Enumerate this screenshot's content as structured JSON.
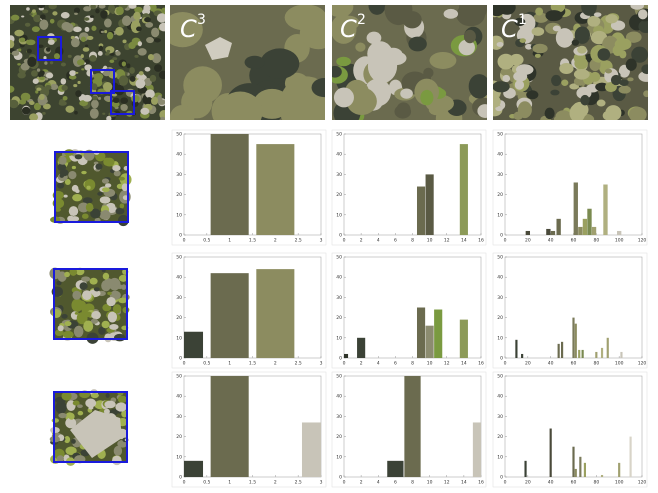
{
  "panels": [
    {
      "label": "C",
      "sup": "3"
    },
    {
      "label": "C",
      "sup": "2"
    },
    {
      "label": "C",
      "sup": "1"
    }
  ],
  "chart_data": [
    {
      "type": "bar",
      "x": [
        1,
        2
      ],
      "values": [
        50,
        45
      ],
      "colors": [
        "#6b6b4f",
        "#8c8c60"
      ],
      "xlim": [
        0,
        3
      ],
      "ylim": [
        0,
        50
      ],
      "xticks": [
        0,
        0.5,
        1,
        1.5,
        2,
        2.5,
        3
      ],
      "yticks": [
        0,
        10,
        20,
        30,
        40,
        50
      ]
    },
    {
      "type": "bar",
      "x": [
        9,
        10,
        14
      ],
      "values": [
        24,
        30,
        45
      ],
      "colors": [
        "#6b6b4f",
        "#5a5a44",
        "#8c9a58"
      ],
      "xlim": [
        0,
        16
      ],
      "ylim": [
        0,
        50
      ],
      "xticks": [
        0,
        2,
        4,
        6,
        8,
        10,
        12,
        14,
        16
      ],
      "yticks": [
        0,
        10,
        20,
        30,
        40,
        50
      ]
    },
    {
      "type": "bar",
      "x": [
        20,
        38,
        42,
        47,
        62,
        66,
        70,
        74,
        78,
        88,
        100
      ],
      "values": [
        2,
        3,
        2,
        8,
        26,
        4,
        8,
        13,
        4,
        25,
        2
      ],
      "colors": [
        "#4a4a3a",
        "#4a4a3a",
        "#6b6b4f",
        "#6b6b4f",
        "#7a7a5a",
        "#8c8c60",
        "#9aa060",
        "#7a8a50",
        "#a0a070",
        "#b0b080",
        "#c8c4b8"
      ],
      "xlim": [
        0,
        120
      ],
      "ylim": [
        0,
        50
      ],
      "xticks": [
        0,
        20,
        40,
        60,
        80,
        100,
        120
      ],
      "yticks": [
        0,
        10,
        20,
        30,
        40,
        50
      ]
    },
    {
      "type": "bar",
      "x": [
        0,
        1,
        2
      ],
      "values": [
        13,
        42,
        44
      ],
      "colors": [
        "#3b4236",
        "#6b6b4f",
        "#8c8c60"
      ],
      "xlim": [
        0,
        3
      ],
      "ylim": [
        0,
        50
      ],
      "xticks": [
        0,
        0.5,
        1,
        1.5,
        2,
        2.5,
        3
      ],
      "yticks": [
        0,
        10,
        20,
        30,
        40,
        50
      ]
    },
    {
      "type": "bar",
      "x": [
        0,
        2,
        9,
        10,
        11,
        14
      ],
      "values": [
        2,
        10,
        25,
        16,
        24,
        19
      ],
      "colors": [
        "#2e3329",
        "#3b4236",
        "#6b6b4f",
        "#8c8c70",
        "#7a9a40",
        "#8c9a58"
      ],
      "xlim": [
        0,
        16
      ],
      "ylim": [
        0,
        50
      ],
      "xticks": [
        0,
        2,
        4,
        6,
        8,
        10,
        12,
        14,
        16
      ],
      "yticks": [
        0,
        10,
        20,
        30,
        40,
        50
      ]
    },
    {
      "type": "bar",
      "x": [
        10,
        15,
        47,
        50,
        60,
        62,
        65,
        68,
        80,
        85,
        90,
        102
      ],
      "values": [
        9,
        2,
        7,
        8,
        20,
        17,
        4,
        4,
        3,
        5,
        10,
        3
      ],
      "colors": [
        "#3b4236",
        "#3b4236",
        "#6b6b4f",
        "#6b6b4f",
        "#7a7a5a",
        "#8c8c60",
        "#9aa060",
        "#7a8a50",
        "#a0a070",
        "#b0b080",
        "#a0a070",
        "#c8c4b8"
      ],
      "xlim": [
        0,
        120
      ],
      "ylim": [
        0,
        50
      ],
      "xticks": [
        0,
        20,
        40,
        60,
        80,
        100,
        120
      ],
      "yticks": [
        0,
        10,
        20,
        30,
        40,
        50
      ]
    },
    {
      "type": "bar",
      "x": [
        0,
        1,
        3
      ],
      "values": [
        8,
        50,
        27
      ],
      "colors": [
        "#3b4236",
        "#6b6b4f",
        "#c8c4b8"
      ],
      "xlim": [
        0,
        3
      ],
      "ylim": [
        0,
        50
      ],
      "xticks": [
        0,
        0.5,
        1,
        1.5,
        2,
        2.5,
        3
      ],
      "yticks": [
        0,
        10,
        20,
        30,
        40,
        50
      ]
    },
    {
      "type": "bar",
      "x": [
        6,
        8,
        16
      ],
      "values": [
        8,
        50,
        27
      ],
      "colors": [
        "#3b4236",
        "#6b6b4f",
        "#c8c4b8"
      ],
      "xlim": [
        0,
        16
      ],
      "ylim": [
        0,
        50
      ],
      "xticks": [
        0,
        2,
        4,
        6,
        8,
        10,
        12,
        14,
        16
      ],
      "yticks": [
        0,
        10,
        20,
        30,
        40,
        50
      ]
    },
    {
      "type": "bar",
      "x": [
        18,
        40,
        60,
        62,
        66,
        70,
        85,
        100,
        110
      ],
      "values": [
        8,
        24,
        15,
        4,
        10,
        7,
        1,
        7,
        20
      ],
      "colors": [
        "#3b4236",
        "#4a4a3a",
        "#6b6b4f",
        "#8c8c60",
        "#7a7a5a",
        "#9aa060",
        "#b0b080",
        "#a0a070",
        "#d8d4c8"
      ],
      "xlim": [
        0,
        120
      ],
      "ylim": [
        0,
        50
      ],
      "xticks": [
        0,
        20,
        40,
        60,
        80,
        100,
        120
      ],
      "yticks": [
        0,
        10,
        20,
        30,
        40,
        50
      ]
    }
  ]
}
